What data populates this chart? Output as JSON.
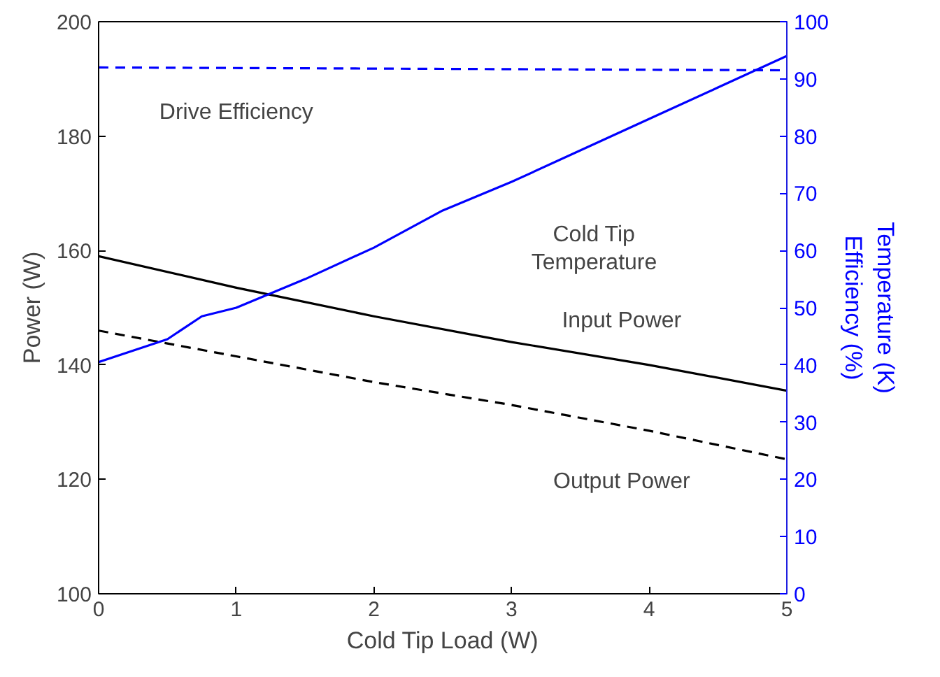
{
  "chart_data": {
    "type": "line",
    "xlabel": "Cold Tip Load (W)",
    "ylabel": "Power (W)",
    "y2label": "Temperature (K)\nEfficiency (%)",
    "xlim": [
      0,
      5
    ],
    "xticks": [
      0,
      1,
      2,
      3,
      4,
      5
    ],
    "ylim": [
      100,
      200
    ],
    "yticks": [
      100,
      120,
      140,
      160,
      180,
      200
    ],
    "y2lim": [
      0,
      100
    ],
    "y2ticks": [
      0,
      10,
      20,
      30,
      40,
      50,
      60,
      70,
      80,
      90,
      100
    ],
    "grid": false,
    "marker": "none",
    "series": [
      {
        "name": "Input Power",
        "color": "#000000",
        "line_style": "solid",
        "x": [
          0,
          1,
          2,
          3,
          4,
          5
        ],
        "values": [
          159,
          153.5,
          148.5,
          144,
          140,
          135.5
        ]
      },
      {
        "name": "Output Power",
        "color": "#000000",
        "line_style": "dashed",
        "x": [
          0,
          1,
          2,
          3,
          4,
          5
        ],
        "values": [
          146,
          141.5,
          137,
          133,
          128.5,
          123.5
        ]
      },
      {
        "name": "Cold Tip\nTemperature",
        "color": "#0000ff",
        "line_style": "solid",
        "axis": "y2",
        "x": [
          0,
          0.5,
          0.75,
          1,
          1.5,
          2,
          2.5,
          3,
          3.5,
          4,
          4.5,
          5
        ],
        "values": [
          40.5,
          44.5,
          48.5,
          50,
          55,
          60.5,
          67,
          72,
          77.5,
          83,
          88.5,
          94
        ]
      },
      {
        "name": "Drive Efficiency",
        "color": "#0000ff",
        "line_style": "dashed",
        "axis": "y2",
        "x": [
          0,
          5
        ],
        "values": [
          92,
          91.5
        ]
      }
    ]
  }
}
